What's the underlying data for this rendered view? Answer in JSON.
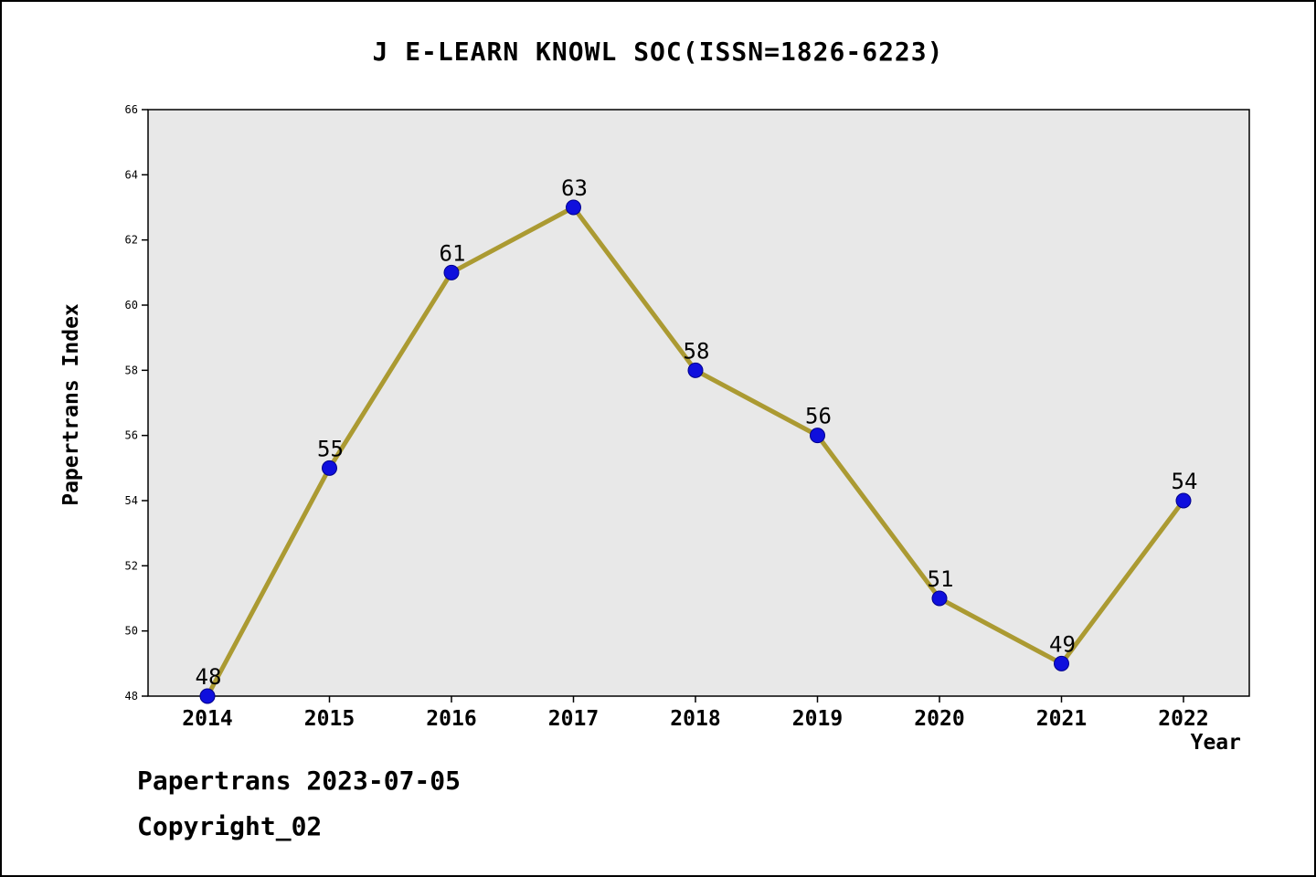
{
  "header": {
    "title": "J E-LEARN KNOWL SOC(ISSN=1826-6223)"
  },
  "footer": {
    "line1": "Papertrans 2023-07-05",
    "line2": "Copyright_02"
  },
  "chart_data": {
    "type": "line",
    "title": "J E-LEARN KNOWL SOC(ISSN=1826-6223)",
    "xlabel": "Year",
    "ylabel": "Papertrans Index",
    "categories": [
      2014,
      2015,
      2016,
      2017,
      2018,
      2019,
      2020,
      2021,
      2022
    ],
    "values": [
      48,
      55,
      61,
      63,
      58,
      56,
      51,
      49,
      54
    ],
    "ylim": [
      48,
      66
    ],
    "yticks": [
      48,
      50,
      52,
      54,
      56,
      58,
      60,
      62,
      64,
      66
    ],
    "grid": false,
    "legend": "none",
    "colors": {
      "line": "#ab9a32",
      "marker_fill": "#0f0fdd",
      "marker_edge": "#00008b",
      "plot_background": "#e8e8e8",
      "axis": "#000000",
      "text": "#000000"
    }
  }
}
